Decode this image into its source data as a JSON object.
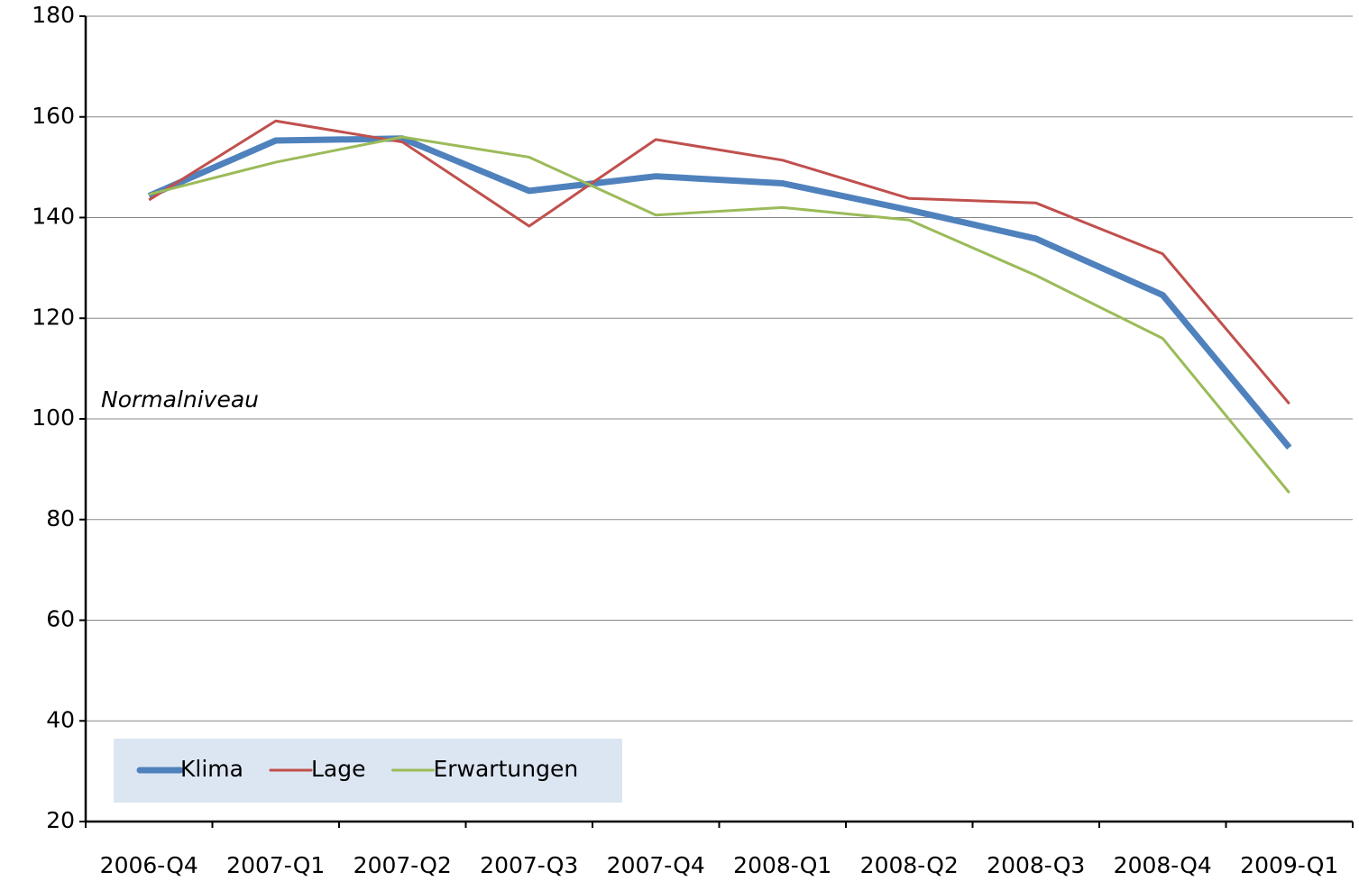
{
  "chart_data": {
    "type": "line",
    "categories": [
      "2006-Q4",
      "2007-Q1",
      "2007-Q2",
      "2007-Q3",
      "2007-Q4",
      "2008-Q1",
      "2008-Q2",
      "2008-Q3",
      "2008-Q4",
      "2009-Q1"
    ],
    "series": [
      {
        "name": "Klima",
        "color": "#4f81bd",
        "values": [
          144.3,
          155.3,
          155.7,
          145.3,
          148.2,
          146.8,
          141.5,
          135.8,
          124.6,
          94.3
        ]
      },
      {
        "name": "Lage",
        "color": "#c0504d",
        "values": [
          143.5,
          159.2,
          155.0,
          138.3,
          155.5,
          151.4,
          143.8,
          142.9,
          132.8,
          103.0
        ]
      },
      {
        "name": "Erwartungen",
        "color": "#9bbb59",
        "values": [
          144.6,
          151.0,
          156.0,
          152.0,
          140.5,
          142.0,
          139.5,
          128.5,
          116.0,
          85.3
        ]
      }
    ],
    "annotation": "Normalniveau",
    "ylim": [
      20,
      180
    ],
    "yticks": [
      20,
      40,
      60,
      80,
      100,
      120,
      140,
      160,
      180
    ],
    "grid": true,
    "legend": "bottom-left"
  }
}
